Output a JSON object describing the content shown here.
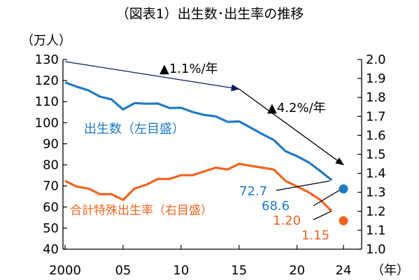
{
  "chart_data": {
    "type": "line",
    "title": "（図表1）出生数･出生率の推移",
    "x_unit_label": "（年）",
    "y_left_unit_label": "（万人）",
    "x_ticks": [
      "2000",
      "05",
      "10",
      "15",
      "20",
      "24"
    ],
    "y_left_ticks": [
      "130",
      "120",
      "110",
      "100",
      "90",
      "80",
      "70",
      "60",
      "50",
      "40"
    ],
    "y_right_ticks": [
      "2.0",
      "1.9",
      "1.8",
      "1.7",
      "1.6",
      "1.5",
      "1.4",
      "1.3",
      "1.2",
      "1.1",
      "1.0"
    ],
    "xlim": [
      2000,
      2024
    ],
    "ylim_left": [
      40,
      130
    ],
    "ylim_right": [
      1.0,
      2.0
    ],
    "grid": false,
    "series": [
      {
        "name": "出生数（左目盛）",
        "axis": "left",
        "color": "#1f7ac4",
        "x": [
          2000,
          2001,
          2002,
          2003,
          2004,
          2005,
          2006,
          2007,
          2008,
          2009,
          2010,
          2011,
          2012,
          2013,
          2014,
          2015,
          2016,
          2017,
          2018,
          2019,
          2020,
          2021,
          2022,
          2023
        ],
        "values": [
          119.1,
          117.1,
          115.4,
          112.4,
          111.1,
          106.3,
          109.3,
          109.0,
          109.1,
          107.0,
          107.1,
          105.1,
          103.7,
          103.0,
          100.4,
          100.6,
          97.7,
          94.6,
          91.8,
          86.5,
          84.1,
          81.2,
          77.1,
          72.7
        ]
      },
      {
        "name": "合計特殊出生率（右目盛）",
        "axis": "right",
        "color": "#f2641f",
        "x": [
          2000,
          2001,
          2002,
          2003,
          2004,
          2005,
          2006,
          2007,
          2008,
          2009,
          2010,
          2011,
          2012,
          2013,
          2014,
          2015,
          2016,
          2017,
          2018,
          2019,
          2020,
          2021,
          2022,
          2023
        ],
        "values": [
          1.36,
          1.33,
          1.32,
          1.29,
          1.29,
          1.26,
          1.32,
          1.34,
          1.37,
          1.37,
          1.39,
          1.39,
          1.41,
          1.43,
          1.42,
          1.45,
          1.44,
          1.43,
          1.42,
          1.36,
          1.33,
          1.3,
          1.26,
          1.2
        ]
      }
    ],
    "points_2024": [
      {
        "series": "出生数（左目盛）",
        "axis": "left",
        "x": 2024,
        "value": 68.6,
        "color": "#1f7ac4"
      },
      {
        "series": "合計特殊出生率（右目盛）",
        "axis": "right",
        "x": 2024,
        "value": 1.15,
        "color": "#f2641f"
      }
    ],
    "value_labels": [
      "72.7",
      "68.6",
      "1.20",
      "1.15"
    ],
    "trend_arrows": [
      {
        "label": "▲1.1%/年",
        "color": "#0a1a5c",
        "from": {
          "x": 2000,
          "value": 129
        },
        "to": {
          "x": 2015,
          "value": 116
        }
      },
      {
        "label": "▲4.2%/年",
        "color": "#000000",
        "from": {
          "x": 2015,
          "value": 116
        },
        "to": {
          "x": 2024,
          "value": 80
        }
      }
    ]
  }
}
